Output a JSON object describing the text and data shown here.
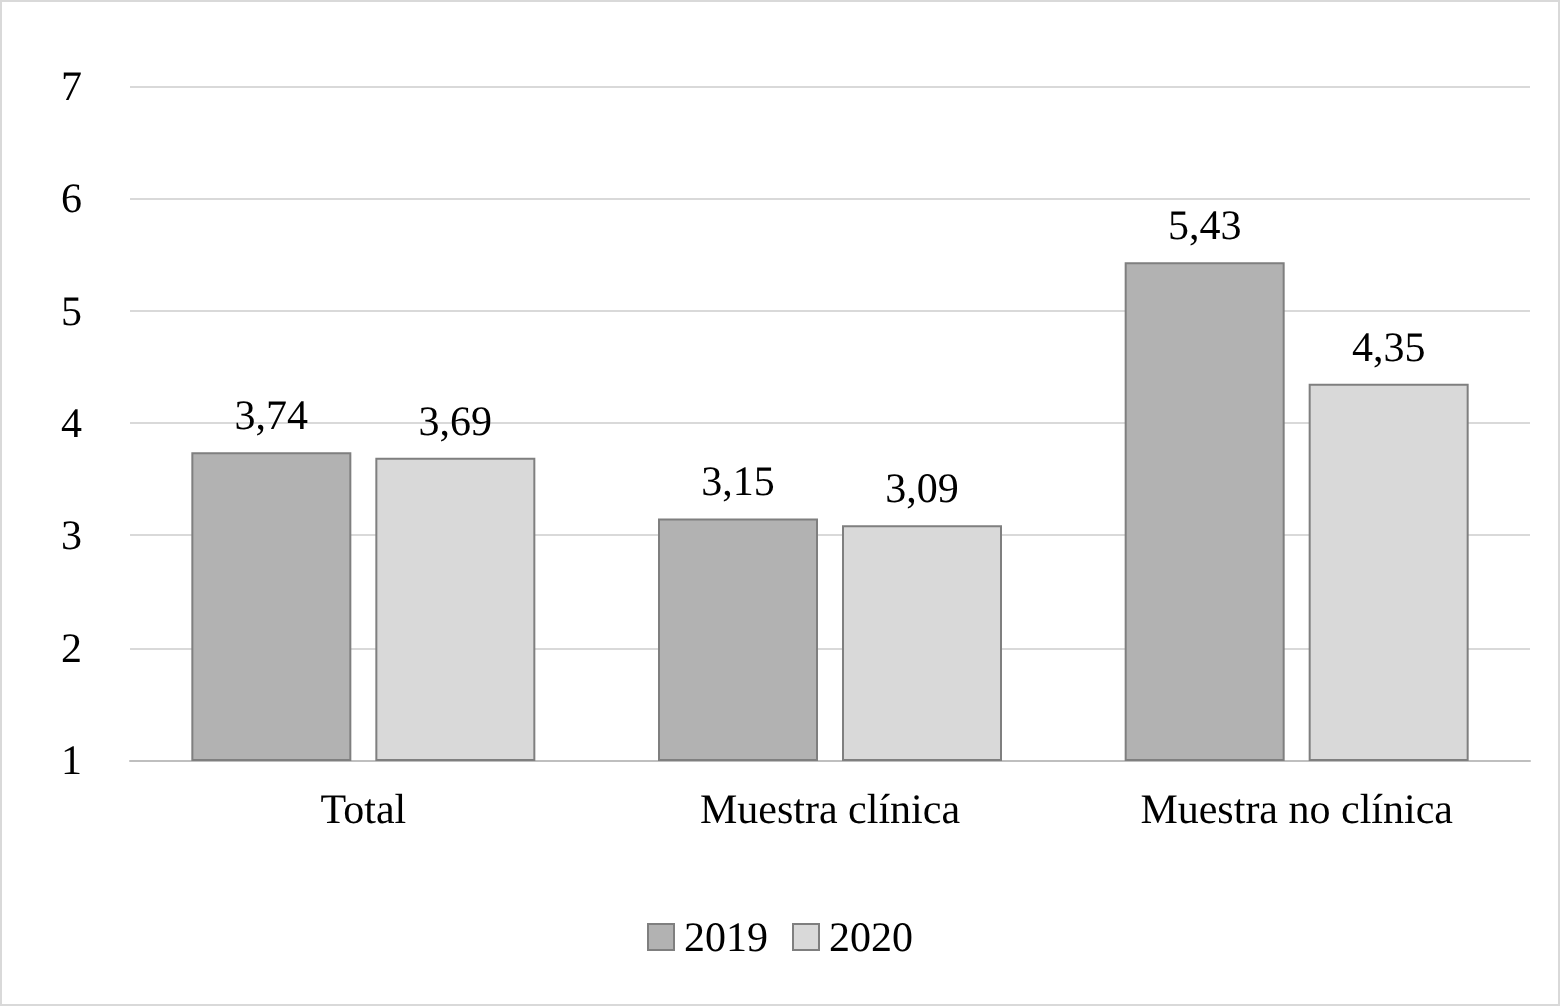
{
  "chart_data": {
    "type": "bar",
    "categories": [
      "Total",
      "Muestra clínica",
      "Muestra no clínica"
    ],
    "series": [
      {
        "name": "2019",
        "color": "#b2b2b2",
        "values": [
          3.74,
          3.15,
          5.43
        ],
        "value_labels": [
          "3,74",
          "3,15",
          "5,43"
        ]
      },
      {
        "name": "2020",
        "color": "#d9d9d9",
        "values": [
          3.69,
          3.09,
          4.35
        ],
        "value_labels": [
          "3,69",
          "3,09",
          "4,35"
        ]
      }
    ],
    "ylim": [
      1,
      7
    ],
    "yticks": [
      1,
      2,
      3,
      4,
      5,
      6,
      7
    ],
    "grid": "y",
    "legend": "bottom"
  }
}
